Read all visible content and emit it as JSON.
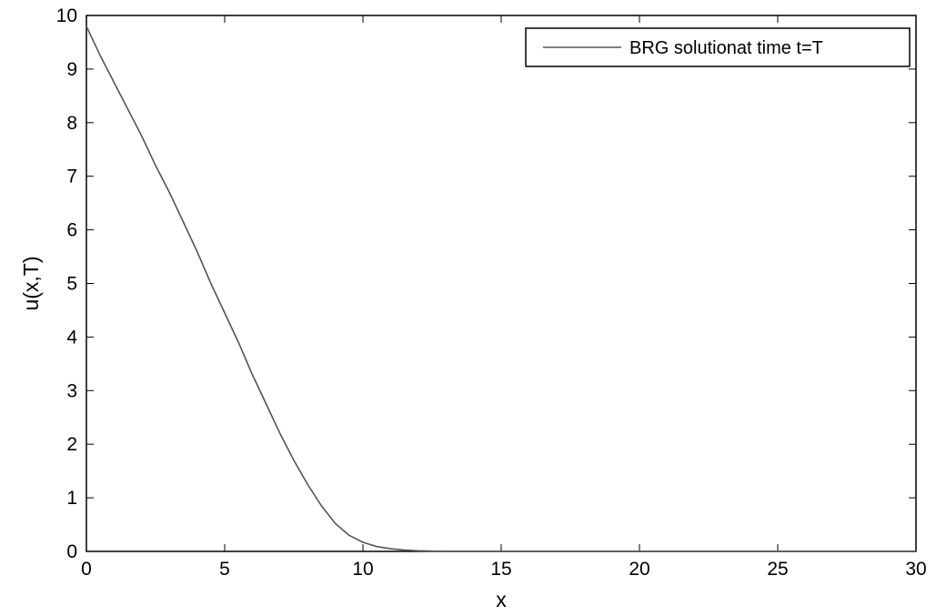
{
  "chart_data": {
    "type": "line",
    "title": "",
    "xlabel": "x",
    "ylabel": "u(x,T)",
    "xlim": [
      0,
      30
    ],
    "ylim": [
      0,
      10
    ],
    "xticks": [
      0,
      5,
      10,
      15,
      20,
      25,
      30
    ],
    "yticks": [
      0,
      1,
      2,
      3,
      4,
      5,
      6,
      7,
      8,
      9,
      10
    ],
    "grid": false,
    "legend_position": "top-right",
    "series": [
      {
        "name": "BRG solutionat time t=T",
        "color": "#555555",
        "x": [
          0,
          0.5,
          1,
          1.5,
          2,
          2.5,
          3,
          3.5,
          4,
          4.5,
          5,
          5.5,
          6,
          6.5,
          7,
          7.5,
          8,
          8.5,
          9,
          9.5,
          10,
          10.5,
          11,
          11.5,
          12,
          12.5,
          13,
          13.5,
          14,
          15,
          16,
          18,
          20,
          22,
          24,
          26,
          28,
          30
        ],
        "y": [
          9.8,
          9.25,
          8.75,
          8.25,
          7.75,
          7.2,
          6.7,
          6.15,
          5.6,
          5.0,
          4.45,
          3.9,
          3.3,
          2.75,
          2.2,
          1.7,
          1.25,
          0.85,
          0.52,
          0.3,
          0.17,
          0.09,
          0.05,
          0.025,
          0.012,
          0.005,
          0.002,
          0.001,
          0,
          0,
          0,
          0,
          0,
          0,
          0,
          0,
          0,
          0
        ]
      }
    ]
  }
}
